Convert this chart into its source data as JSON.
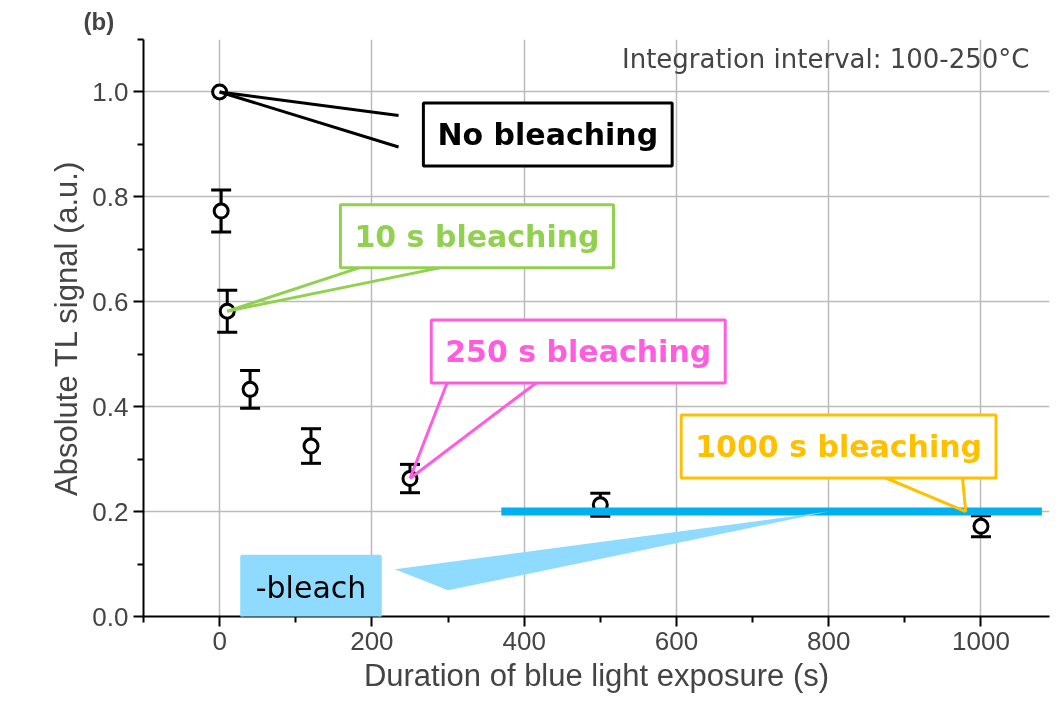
{
  "chart_data": {
    "type": "scatter",
    "title": "(b)",
    "xlabel": "Duration of blue light exposure (s)",
    "ylabel": "Absolute TL signal (a.u.)",
    "xlim": [
      -100,
      1090
    ],
    "ylim": [
      0,
      1.1
    ],
    "xticks": [
      0,
      200,
      400,
      600,
      800,
      1000
    ],
    "yticks": [
      {
        "value": 0,
        "label": "0.0"
      },
      {
        "value": 0.2,
        "label": "0.2"
      },
      {
        "value": 0.4,
        "label": "0.4"
      },
      {
        "value": 0.6,
        "label": "0.6"
      },
      {
        "value": 0.8,
        "label": "0.8"
      },
      {
        "value": 1,
        "label": "1.0"
      }
    ],
    "grid": true,
    "marker": "circle",
    "series": [
      {
        "color": "#000000",
        "x": [
          0,
          2,
          10,
          40,
          120,
          250,
          500,
          1000
        ],
        "values": [
          1.0,
          0.773,
          0.582,
          0.433,
          0.325,
          0.263,
          0.213,
          0.172
        ],
        "errors": [
          null,
          0.04,
          0.04,
          0.036,
          0.033,
          0.027,
          0.022,
          0.02
        ]
      },
      {
        "type": "line",
        "marker": "none",
        "color": "#00b0f0",
        "x": [
          370,
          1080
        ],
        "values": [
          0.2,
          0.2
        ]
      }
    ],
    "annotations": [
      "Integration interval: 100-250°C",
      {
        "text": "No bleaching",
        "x": 0,
        "y": 1.0
      },
      {
        "text": "10 s bleaching",
        "x": 10,
        "y": 0.582
      },
      {
        "text": "250 s bleaching",
        "x": 250,
        "y": 0.263
      },
      {
        "text": "1000 s bleaching",
        "x": 980,
        "y": 0.2
      },
      {
        "text": "-bleach",
        "x": 800,
        "y": 0.2
      }
    ]
  }
}
